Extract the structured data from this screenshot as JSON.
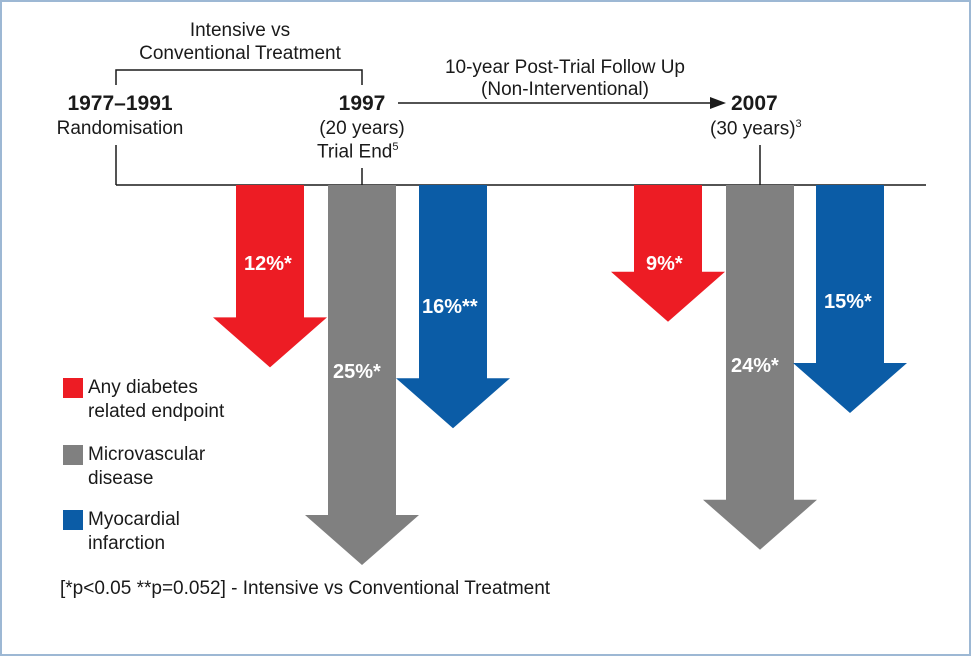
{
  "colors": {
    "red": "#ed1c24",
    "gray": "#808080",
    "blue": "#0b5ca6",
    "line": "#1a1a1a",
    "border": "#9db8d4"
  },
  "treatment_bracket": {
    "line1": "Intensive vs",
    "line2": "Conventional Treatment"
  },
  "followup": {
    "line1": "10-year Post-Trial Follow Up",
    "line2": "(Non-Interventional)"
  },
  "milestones": [
    {
      "year": "1977–1991",
      "line2": "Randomisation"
    },
    {
      "year": "1997",
      "line2": "(20 years)",
      "line3": "Trial End",
      "sup": "5"
    },
    {
      "year": "2007",
      "line2": "(30 years)",
      "sup": "3"
    }
  ],
  "reductions_1997": [
    {
      "endpoint": "Any diabetes related endpoint",
      "label": "12%*",
      "value": 12,
      "color": "red"
    },
    {
      "endpoint": "Microvascular disease",
      "label": "25%*",
      "value": 25,
      "color": "gray"
    },
    {
      "endpoint": "Myocardial infarction",
      "label": "16%**",
      "value": 16,
      "color": "blue"
    }
  ],
  "reductions_2007": [
    {
      "endpoint": "Any diabetes related endpoint",
      "label": "9%*",
      "value": 9,
      "color": "red"
    },
    {
      "endpoint": "Microvascular disease",
      "label": "24%*",
      "value": 24,
      "color": "gray"
    },
    {
      "endpoint": "Myocardial infarction",
      "label": "15%*",
      "value": 15,
      "color": "blue"
    }
  ],
  "legend": [
    {
      "line1": "Any diabetes",
      "line2": "related endpoint",
      "color": "red"
    },
    {
      "line1": "Microvascular",
      "line2": "disease",
      "color": "gray"
    },
    {
      "line1": "Myocardial",
      "line2": "infarction",
      "color": "blue"
    }
  ],
  "footnote": "[*p<0.05 **p=0.052] - Intensive vs Conventional Treatment"
}
